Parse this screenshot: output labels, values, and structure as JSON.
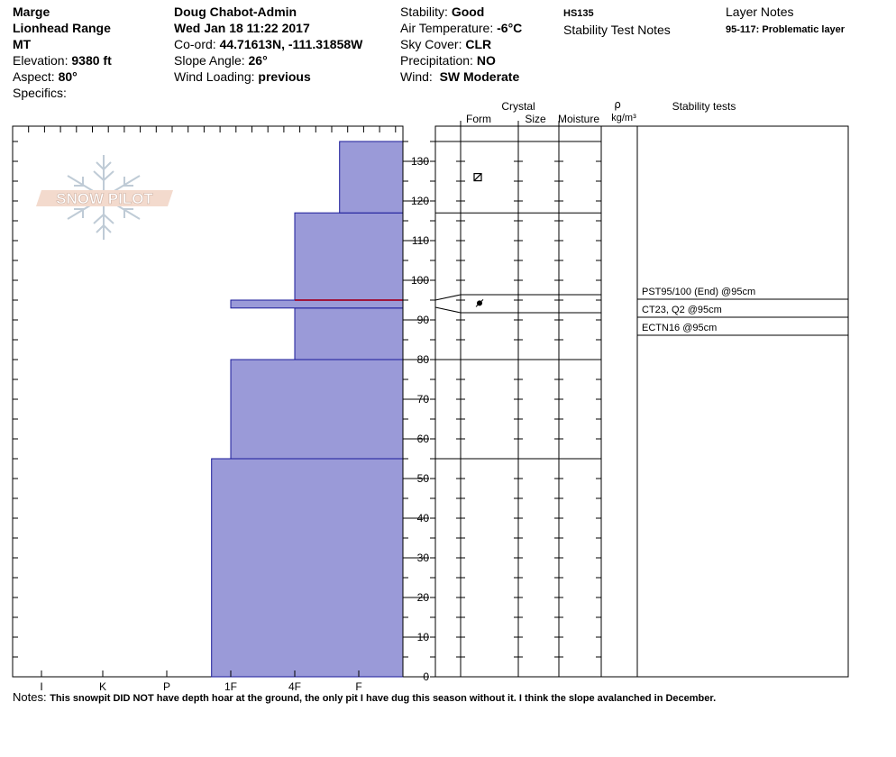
{
  "header": {
    "observer_name": "Marge",
    "location": "Lionhead Range",
    "state": "MT",
    "elevation_label": "Elevation:",
    "elevation_value": "9380 ft",
    "aspect_label": "Aspect:",
    "aspect_value": "80°",
    "specifics_label": "Specifics:",
    "user": "Doug Chabot-Admin",
    "datetime": "Wed Jan 18 11:22 2017",
    "coord_label": "Co-ord:",
    "coord_value": "44.71613N, -111.31858W",
    "slope_label": "Slope Angle:",
    "slope_value": "26°",
    "wind_loading_label": "Wind Loading:",
    "wind_loading_value": "previous",
    "stability_label": "Stability:",
    "stability_value": "Good",
    "air_temp_label": "Air Temperature:",
    "air_temp_value": "-6°C",
    "sky_label": "Sky Cover:",
    "sky_value": "CLR",
    "precip_label": "Precipitation:",
    "precip_value": "NO",
    "wind_label": "Wind:",
    "wind_value": "SW Moderate",
    "hs": "HS135",
    "stability_test_notes": "Stability Test Notes",
    "layer_notes_title": "Layer Notes",
    "layer_note": "95-117: Problematic layer"
  },
  "table_headers": {
    "crystal": "Crystal",
    "form": "Form",
    "size": "Size",
    "moisture": "Moisture",
    "rho": "ρ",
    "density_unit": "kg/m³",
    "stability_tests": "Stability tests"
  },
  "logo_text": "SNOW PILOT",
  "colors": {
    "fill": "#9a9ad8",
    "edge": "#1a1a9a",
    "weak_layer": "#a0143c"
  },
  "chart_data": {
    "type": "bar",
    "orientation": "horizontal step profile (hand hardness vs height)",
    "hardness_categories": [
      "I",
      "K",
      "P",
      "1F",
      "4F",
      "F"
    ],
    "hardness_scale_note": "index 0=F,1=4F,2=1F,3=P,4=K,5=I (harder toward left)",
    "y_ticks": [
      0,
      10,
      20,
      30,
      40,
      50,
      60,
      70,
      80,
      90,
      100,
      110,
      120,
      130
    ],
    "ylim": [
      0,
      138
    ],
    "total_height": 135,
    "layers": [
      {
        "bottom": 0,
        "top": 55,
        "hardness": "1F-",
        "hardness_index": 2.3
      },
      {
        "bottom": 55,
        "top": 80,
        "hardness": "1F",
        "hardness_index": 2.0
      },
      {
        "bottom": 80,
        "top": 93,
        "hardness": "4F",
        "hardness_index": 1.0
      },
      {
        "bottom": 93,
        "top": 95,
        "hardness": "1F",
        "hardness_index": 2.0
      },
      {
        "bottom": 95,
        "top": 117,
        "hardness": "4F",
        "hardness_index": 1.0
      },
      {
        "bottom": 117,
        "top": 135,
        "hardness": "F+",
        "hardness_index": 0.3
      }
    ],
    "weak_layer_height": 95,
    "grain_symbols": [
      {
        "height": 126,
        "symbol": "square-diagonal"
      },
      {
        "height": 94,
        "symbol": "surface-hoar-dot"
      }
    ],
    "stability_tests": [
      {
        "label": "PST95/100 (End) @95cm"
      },
      {
        "label": "CT23, Q2 @95cm"
      },
      {
        "label": "ECTN16 @95cm"
      }
    ]
  },
  "notes": {
    "label": "Notes:",
    "text": "This snowpit DID NOT have depth hoar at the ground, the only pit I have dug this season without it. I think the slope avalanched in December."
  }
}
